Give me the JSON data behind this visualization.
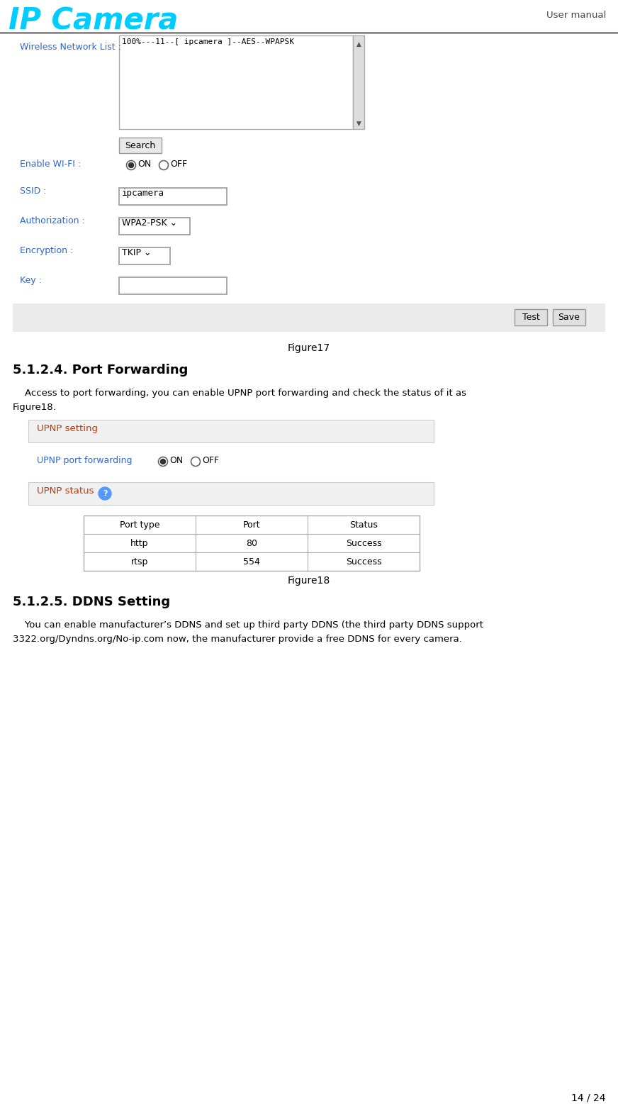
{
  "page_width": 8.72,
  "page_height": 15.57,
  "dpi": 100,
  "bg_color": "#ffffff",
  "header_logo_text": "IP Camera",
  "header_logo_color": "#00ccff",
  "header_right_text": "User manual",
  "wireless_label": "Wireless Network List :",
  "wireless_label_color": "#3366cc",
  "wireless_box_text": "100%---11--[ ipcamera ]--AES--WPAPSK",
  "search_btn_text": "Search",
  "enable_wifi_label": "Enable WI-FI :",
  "enable_wifi_label_color": "#3366cc",
  "ssid_label": "SSID :",
  "ssid_label_color": "#3366cc",
  "ssid_value": "ipcamera",
  "auth_label": "Authorization :",
  "auth_label_color": "#3366cc",
  "auth_value": "WPA2-PSK",
  "enc_label": "Encryption :",
  "enc_label_color": "#3366cc",
  "enc_value": "TKIP",
  "key_label": "Key :",
  "key_label_color": "#3366cc",
  "footer_bar_color": "#ebebeb",
  "test_btn_text": "Test",
  "save_btn_text": "Save",
  "figure17_text": "Figure17",
  "section_title": "5.1.2.4. Port Forwarding",
  "section_body1": "    Access to port forwarding, you can enable UPNP port forwarding and check the status of it as",
  "section_body2": "Figure18.",
  "upnp_setting_label": "UPNP setting",
  "upnp_setting_color": "#cc3300",
  "upnp_port_label": "UPNP port forwarding",
  "upnp_port_color": "#3366cc",
  "upnp_status_label": "UPNP status",
  "upnp_status_color": "#cc3300",
  "table_headers": [
    "Port type",
    "Port",
    "Status"
  ],
  "table_row1": [
    "http",
    "80",
    "Success"
  ],
  "table_row2": [
    "rtsp",
    "554",
    "Success"
  ],
  "figure18_text": "Figure18",
  "ddns_section_title": "5.1.2.5. DDNS Setting",
  "ddns_line1": "    You can enable manufacturer’s DDNS and set up third party DDNS (the third party DDNS support",
  "ddns_line2": "3322.org/Dyndns.org/No-ip.com now, the manufacturer provide a free DDNS for every camera.",
  "page_num": "14 / 24",
  "section_bg": "#f0f0f0",
  "table_border_color": "#aaaaaa",
  "box_border_color": "#aaaaaa",
  "btn_bg": "#e0e0e0",
  "help_icon_color": "#5599ff",
  "on_text": "ON",
  "off_text": "OFF"
}
